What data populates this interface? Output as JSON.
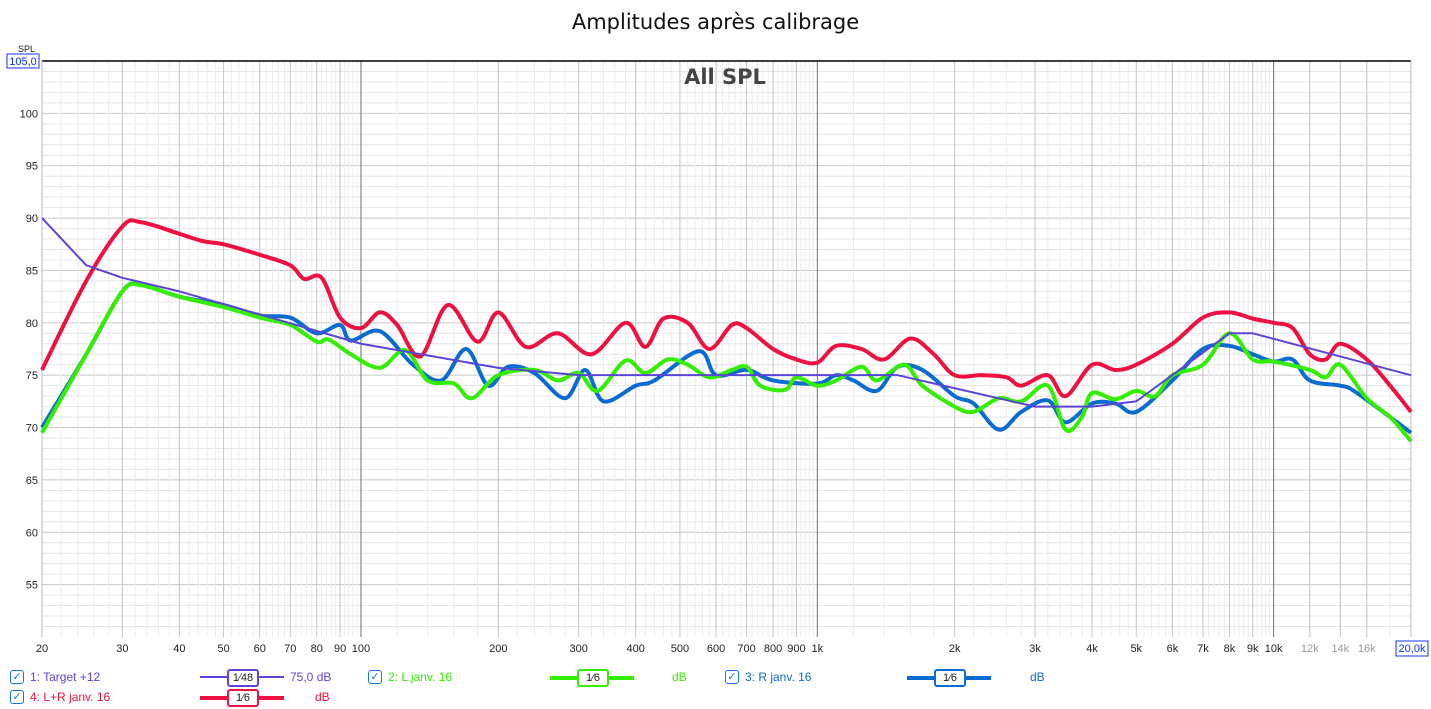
{
  "chart_data": {
    "type": "line",
    "title": "Amplitudes après calibrage",
    "annotation": "All SPL",
    "ylabel": "SPL",
    "ylim": [
      50,
      105
    ],
    "xlim": [
      20,
      20000
    ],
    "xscale": "log",
    "ymax_label": "105,0",
    "xmax_label": "20,0k",
    "yticks": [
      55,
      60,
      65,
      70,
      75,
      80,
      85,
      90,
      95,
      100
    ],
    "xticks": [
      {
        "v": 20,
        "l": "20"
      },
      {
        "v": 30,
        "l": "30"
      },
      {
        "v": 40,
        "l": "40"
      },
      {
        "v": 50,
        "l": "50"
      },
      {
        "v": 60,
        "l": "60"
      },
      {
        "v": 70,
        "l": "70"
      },
      {
        "v": 80,
        "l": "80"
      },
      {
        "v": 90,
        "l": "90"
      },
      {
        "v": 100,
        "l": "100"
      },
      {
        "v": 200,
        "l": "200"
      },
      {
        "v": 300,
        "l": "300"
      },
      {
        "v": 400,
        "l": "400"
      },
      {
        "v": 500,
        "l": "500"
      },
      {
        "v": 600,
        "l": "600"
      },
      {
        "v": 700,
        "l": "700"
      },
      {
        "v": 800,
        "l": "800"
      },
      {
        "v": 900,
        "l": "900"
      },
      {
        "v": 1000,
        "l": "1k"
      },
      {
        "v": 2000,
        "l": "2k"
      },
      {
        "v": 3000,
        "l": "3k"
      },
      {
        "v": 4000,
        "l": "4k"
      },
      {
        "v": 5000,
        "l": "5k"
      },
      {
        "v": 6000,
        "l": "6k"
      },
      {
        "v": 7000,
        "l": "7k"
      },
      {
        "v": 8000,
        "l": "8k"
      },
      {
        "v": 9000,
        "l": "9k"
      },
      {
        "v": 10000,
        "l": "10k"
      },
      {
        "v": 12000,
        "l": "12k",
        "grey": true
      },
      {
        "v": 14000,
        "l": "14k",
        "grey": true
      },
      {
        "v": 16000,
        "l": "16k",
        "grey": true
      }
    ],
    "grid": true,
    "series": [
      {
        "name": "1: Target +12",
        "color": "#5b45d6",
        "width": 2,
        "smoothing": "48",
        "value": "75,0 dB",
        "smooth": false,
        "points": [
          [
            20,
            90
          ],
          [
            25,
            85.5
          ],
          [
            30,
            84.3
          ],
          [
            40,
            83
          ],
          [
            60,
            80.8
          ],
          [
            100,
            78
          ],
          [
            200,
            75.7
          ],
          [
            300,
            75
          ],
          [
            1000,
            75
          ],
          [
            1500,
            75
          ],
          [
            3000,
            72
          ],
          [
            4000,
            72
          ],
          [
            5000,
            72.5
          ],
          [
            8000,
            79
          ],
          [
            9000,
            79
          ],
          [
            20000,
            75
          ]
        ]
      },
      {
        "name": "2: L janv. 16",
        "color": "#33ee00",
        "width": 4,
        "smoothing": "6",
        "value": "dB",
        "smooth": true,
        "points": [
          [
            20,
            69.5
          ],
          [
            25,
            77
          ],
          [
            30,
            83
          ],
          [
            33,
            83.6
          ],
          [
            40,
            82.5
          ],
          [
            50,
            81.5
          ],
          [
            60,
            80.5
          ],
          [
            70,
            79.8
          ],
          [
            80,
            78.2
          ],
          [
            85,
            78.4
          ],
          [
            95,
            77
          ],
          [
            110,
            75.7
          ],
          [
            125,
            77.4
          ],
          [
            140,
            74.5
          ],
          [
            160,
            74.2
          ],
          [
            175,
            72.8
          ],
          [
            200,
            75
          ],
          [
            240,
            75.5
          ],
          [
            270,
            74.5
          ],
          [
            300,
            75.2
          ],
          [
            330,
            73.5
          ],
          [
            380,
            76.4
          ],
          [
            420,
            75.2
          ],
          [
            470,
            76.5
          ],
          [
            520,
            76
          ],
          [
            580,
            74.8
          ],
          [
            650,
            75.5
          ],
          [
            700,
            75.8
          ],
          [
            750,
            74
          ],
          [
            850,
            73.6
          ],
          [
            900,
            74.8
          ],
          [
            1000,
            74
          ],
          [
            1100,
            74.5
          ],
          [
            1250,
            75.8
          ],
          [
            1350,
            74.5
          ],
          [
            1550,
            76
          ],
          [
            1700,
            74
          ],
          [
            2000,
            72
          ],
          [
            2200,
            71.5
          ],
          [
            2500,
            72.8
          ],
          [
            2800,
            72.5
          ],
          [
            3200,
            74
          ],
          [
            3500,
            69.8
          ],
          [
            3800,
            71
          ],
          [
            4000,
            73.3
          ],
          [
            4500,
            72.7
          ],
          [
            5000,
            73.5
          ],
          [
            5500,
            73
          ],
          [
            6000,
            75
          ],
          [
            7000,
            76
          ],
          [
            8000,
            79
          ],
          [
            9000,
            76.5
          ],
          [
            10000,
            76.3
          ],
          [
            12000,
            75.5
          ],
          [
            13000,
            74.8
          ],
          [
            14000,
            76
          ],
          [
            16000,
            72.8
          ],
          [
            18000,
            71
          ],
          [
            20000,
            68.7
          ]
        ]
      },
      {
        "name": "3: R janv. 16",
        "color": "#0a6cd0",
        "width": 4,
        "smoothing": "6",
        "value": "dB",
        "smooth": true,
        "points": [
          [
            20,
            70
          ],
          [
            25,
            77
          ],
          [
            30,
            83
          ],
          [
            33,
            83.6
          ],
          [
            40,
            82.5
          ],
          [
            50,
            81.7
          ],
          [
            60,
            80.7
          ],
          [
            70,
            80.5
          ],
          [
            80,
            79
          ],
          [
            90,
            79.8
          ],
          [
            95,
            78.3
          ],
          [
            110,
            79.2
          ],
          [
            130,
            76
          ],
          [
            150,
            74.5
          ],
          [
            170,
            77.5
          ],
          [
            190,
            74
          ],
          [
            210,
            75.8
          ],
          [
            240,
            75.2
          ],
          [
            280,
            72.8
          ],
          [
            310,
            75.5
          ],
          [
            340,
            72.5
          ],
          [
            400,
            74
          ],
          [
            440,
            74.5
          ],
          [
            550,
            77.3
          ],
          [
            600,
            75
          ],
          [
            700,
            75.5
          ],
          [
            800,
            74.5
          ],
          [
            1000,
            74.2
          ],
          [
            1100,
            75
          ],
          [
            1200,
            74.5
          ],
          [
            1350,
            73.5
          ],
          [
            1500,
            75.8
          ],
          [
            1700,
            75.5
          ],
          [
            2000,
            73
          ],
          [
            2200,
            72.3
          ],
          [
            2500,
            69.8
          ],
          [
            2800,
            71.5
          ],
          [
            3200,
            72.6
          ],
          [
            3500,
            70.5
          ],
          [
            4000,
            72.3
          ],
          [
            4500,
            72.3
          ],
          [
            5000,
            71.5
          ],
          [
            6000,
            74.5
          ],
          [
            7000,
            77.5
          ],
          [
            8000,
            77.8
          ],
          [
            9000,
            77
          ],
          [
            10000,
            76.3
          ],
          [
            11000,
            76.5
          ],
          [
            12000,
            74.5
          ],
          [
            14000,
            74
          ],
          [
            15000,
            73.5
          ],
          [
            18000,
            71
          ],
          [
            20000,
            69.5
          ]
        ]
      },
      {
        "name": "4: L+R janv. 16",
        "color": "#ee1040",
        "width": 4,
        "smoothing": "6",
        "value": "dB",
        "smooth": true,
        "points": [
          [
            20,
            75.5
          ],
          [
            25,
            84
          ],
          [
            30,
            89.2
          ],
          [
            33,
            89.6
          ],
          [
            40,
            88.5
          ],
          [
            45,
            87.8
          ],
          [
            50,
            87.5
          ],
          [
            60,
            86.5
          ],
          [
            70,
            85.5
          ],
          [
            75,
            84.2
          ],
          [
            82,
            84.3
          ],
          [
            90,
            80.5
          ],
          [
            100,
            79.5
          ],
          [
            110,
            81
          ],
          [
            120,
            79.8
          ],
          [
            135,
            76.8
          ],
          [
            155,
            81.7
          ],
          [
            180,
            78.2
          ],
          [
            200,
            81
          ],
          [
            230,
            77.7
          ],
          [
            270,
            79
          ],
          [
            320,
            77
          ],
          [
            380,
            80
          ],
          [
            420,
            77.7
          ],
          [
            460,
            80.4
          ],
          [
            520,
            80
          ],
          [
            580,
            77.5
          ],
          [
            650,
            79.8
          ],
          [
            700,
            79.5
          ],
          [
            800,
            77.5
          ],
          [
            900,
            76.5
          ],
          [
            1000,
            76.2
          ],
          [
            1100,
            77.8
          ],
          [
            1250,
            77.5
          ],
          [
            1400,
            76.5
          ],
          [
            1600,
            78.5
          ],
          [
            1800,
            77
          ],
          [
            2000,
            75
          ],
          [
            2300,
            75
          ],
          [
            2600,
            74.8
          ],
          [
            2800,
            74
          ],
          [
            3200,
            75
          ],
          [
            3500,
            73
          ],
          [
            4000,
            76
          ],
          [
            4500,
            75.5
          ],
          [
            5000,
            76
          ],
          [
            6000,
            78
          ],
          [
            7000,
            80.5
          ],
          [
            8000,
            81
          ],
          [
            9000,
            80.4
          ],
          [
            10000,
            80
          ],
          [
            11000,
            79.5
          ],
          [
            12000,
            77
          ],
          [
            13000,
            76.5
          ],
          [
            14000,
            78
          ],
          [
            16000,
            76.5
          ],
          [
            18000,
            74
          ],
          [
            20000,
            71.5
          ]
        ]
      }
    ]
  }
}
